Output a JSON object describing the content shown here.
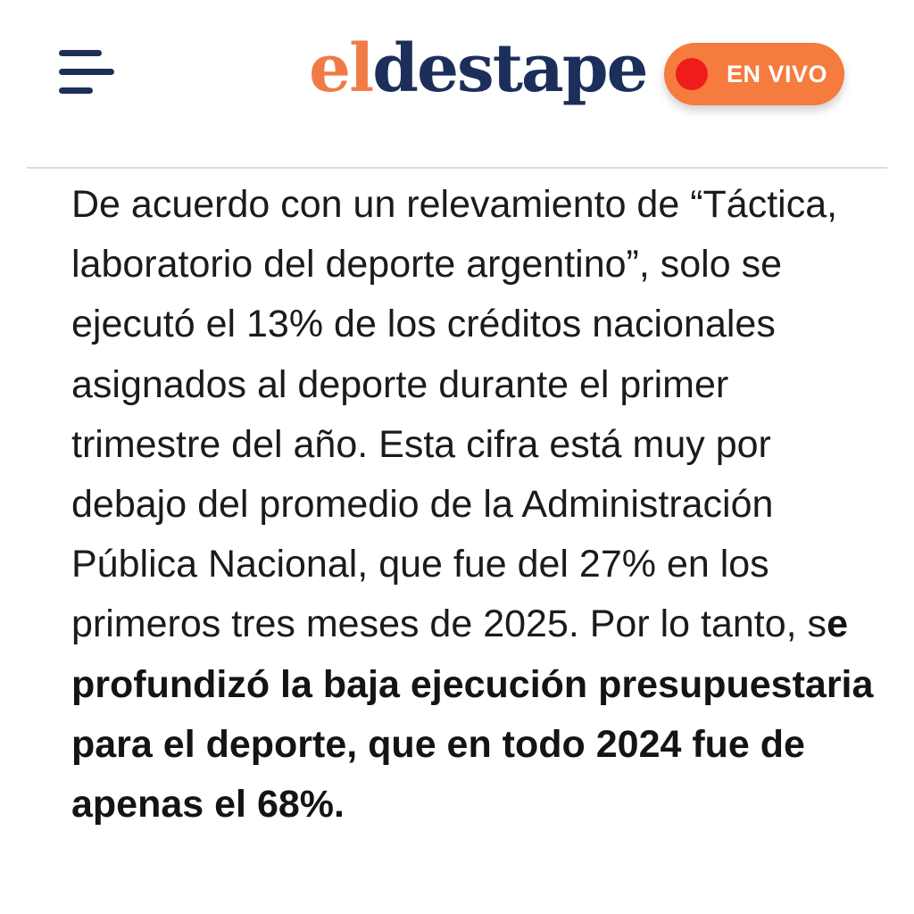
{
  "header": {
    "menu_icon": "hamburger-menu-icon",
    "logo": {
      "part_el": "el",
      "part_destape": "destape"
    },
    "live_button": {
      "label": "EN VIVO",
      "dot_color": "#ee1c1c",
      "background_color": "#f57b3e"
    }
  },
  "article": {
    "paragraph": {
      "plain_text": "De acuerdo con un relevamiento de “Táctica, laboratorio del deporte argentino”, solo se ejecutó el 13% de los créditos nacionales asignados al deporte durante el primer trimestre del año. Esta cifra está muy por debajo del promedio de la Administración Pública Nacional, que fue del 27% en los primeros tres meses de 2025. Por lo tanto, s",
      "bold_text": "e profundizó la baja ejecución presupuestaria para el deporte, que en todo 2024 fue de apenas el 68%."
    }
  },
  "colors": {
    "brand_navy": "#1c2f5a",
    "brand_orange": "#f07b45",
    "text": "#1b1b1b"
  }
}
